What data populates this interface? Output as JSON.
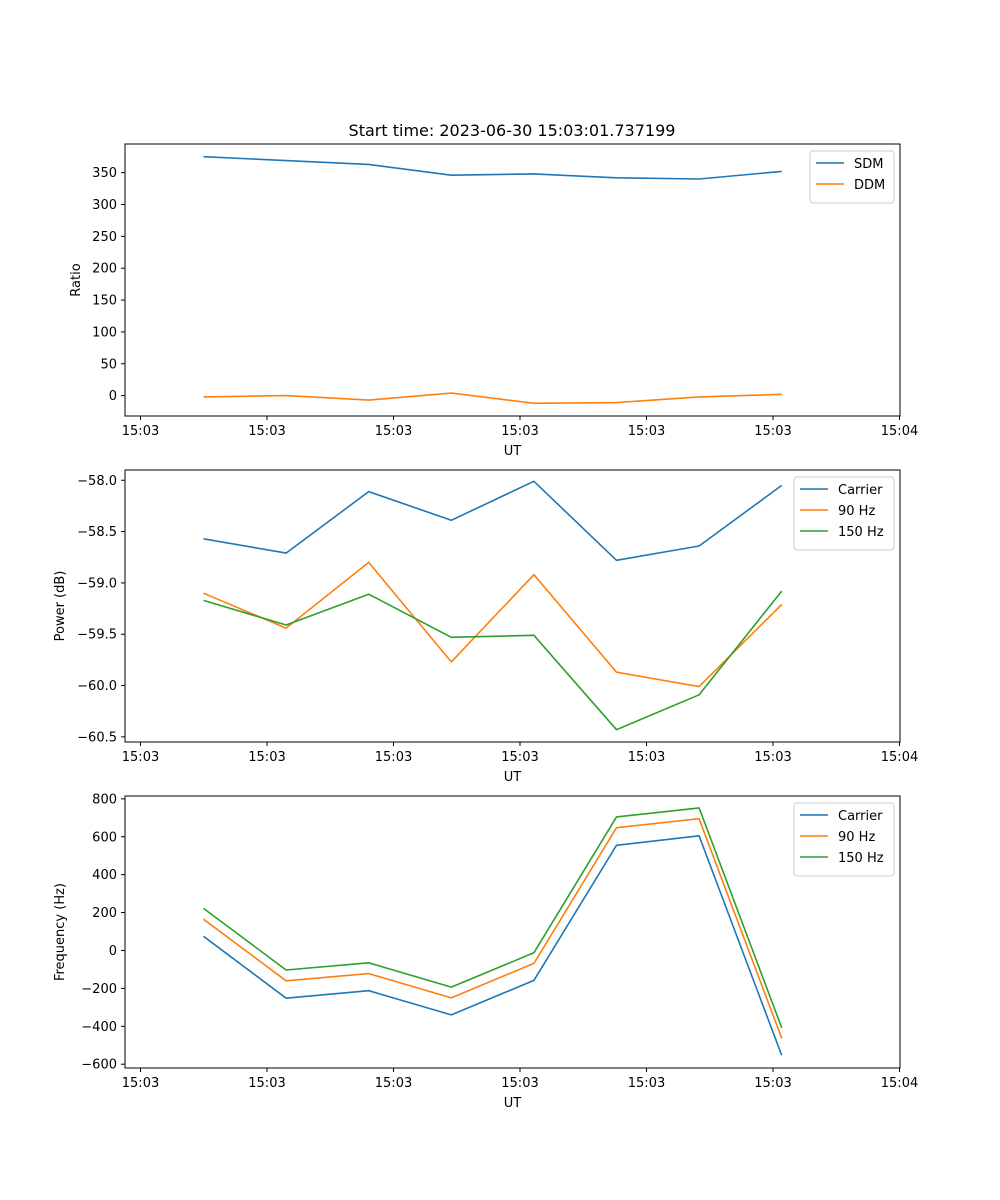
{
  "title": "Start time: 2023-06-30 15:03:01.737199",
  "colors": {
    "c0": "#1f77b4",
    "c1": "#ff7f0e",
    "c2": "#2ca02c"
  },
  "chart_data": [
    {
      "type": "line",
      "xlabel": "UT",
      "ylabel": "Ratio",
      "x_tick_labels": [
        "15:03",
        "15:03",
        "15:03",
        "15:03",
        "15:03",
        "15:03",
        "15:04"
      ],
      "y_ticks": [
        0,
        50,
        100,
        150,
        200,
        250,
        300,
        350
      ],
      "ylim": [
        -32,
        395
      ],
      "legend": "top-right",
      "series": [
        {
          "name": "SDM",
          "color": "#1f77b4",
          "values": [
            375,
            369,
            363,
            346,
            348,
            342,
            340,
            352
          ]
        },
        {
          "name": "DDM",
          "color": "#ff7f0e",
          "values": [
            -2,
            0,
            -7,
            4,
            -12,
            -11,
            -2,
            2
          ]
        }
      ]
    },
    {
      "type": "line",
      "xlabel": "UT",
      "ylabel": "Power (dB)",
      "x_tick_labels": [
        "15:03",
        "15:03",
        "15:03",
        "15:03",
        "15:03",
        "15:03",
        "15:04"
      ],
      "y_ticks": [
        -60.5,
        -60.0,
        -59.5,
        -59.0,
        -58.5,
        -58.0
      ],
      "y_tick_labels": [
        "−60.5",
        "−60.0",
        "−59.5",
        "−59.0",
        "−58.5",
        "−58.0"
      ],
      "ylim": [
        -60.55,
        -57.9
      ],
      "legend": "top-right",
      "series": [
        {
          "name": "Carrier",
          "color": "#1f77b4",
          "values": [
            -58.57,
            -58.71,
            -58.11,
            -58.39,
            -58.01,
            -58.78,
            -58.64,
            -58.05
          ]
        },
        {
          "name": "90 Hz",
          "color": "#ff7f0e",
          "values": [
            -59.1,
            -59.44,
            -58.8,
            -59.77,
            -58.92,
            -59.87,
            -60.01,
            -59.21
          ]
        },
        {
          "name": "150 Hz",
          "color": "#2ca02c",
          "values": [
            -59.17,
            -59.41,
            -59.11,
            -59.53,
            -59.51,
            -60.43,
            -60.09,
            -59.08
          ]
        }
      ]
    },
    {
      "type": "line",
      "xlabel": "UT",
      "ylabel": "Frequency (Hz)",
      "x_tick_labels": [
        "15:03",
        "15:03",
        "15:03",
        "15:03",
        "15:03",
        "15:03",
        "15:04"
      ],
      "y_ticks": [
        -600,
        -400,
        -200,
        0,
        200,
        400,
        600,
        800
      ],
      "y_tick_labels": [
        "−600",
        "−400",
        "−200",
        "0",
        "200",
        "400",
        "600",
        "800"
      ],
      "ylim": [
        -620,
        815
      ],
      "legend": "top-right",
      "series": [
        {
          "name": "Carrier",
          "color": "#1f77b4",
          "values": [
            75,
            -252,
            -212,
            -340,
            -158,
            555,
            605,
            -553
          ]
        },
        {
          "name": "90 Hz",
          "color": "#ff7f0e",
          "values": [
            165,
            -160,
            -122,
            -250,
            -68,
            648,
            695,
            -463
          ]
        },
        {
          "name": "150 Hz",
          "color": "#2ca02c",
          "values": [
            222,
            -103,
            -65,
            -193,
            -12,
            705,
            752,
            -408
          ]
        }
      ]
    }
  ]
}
